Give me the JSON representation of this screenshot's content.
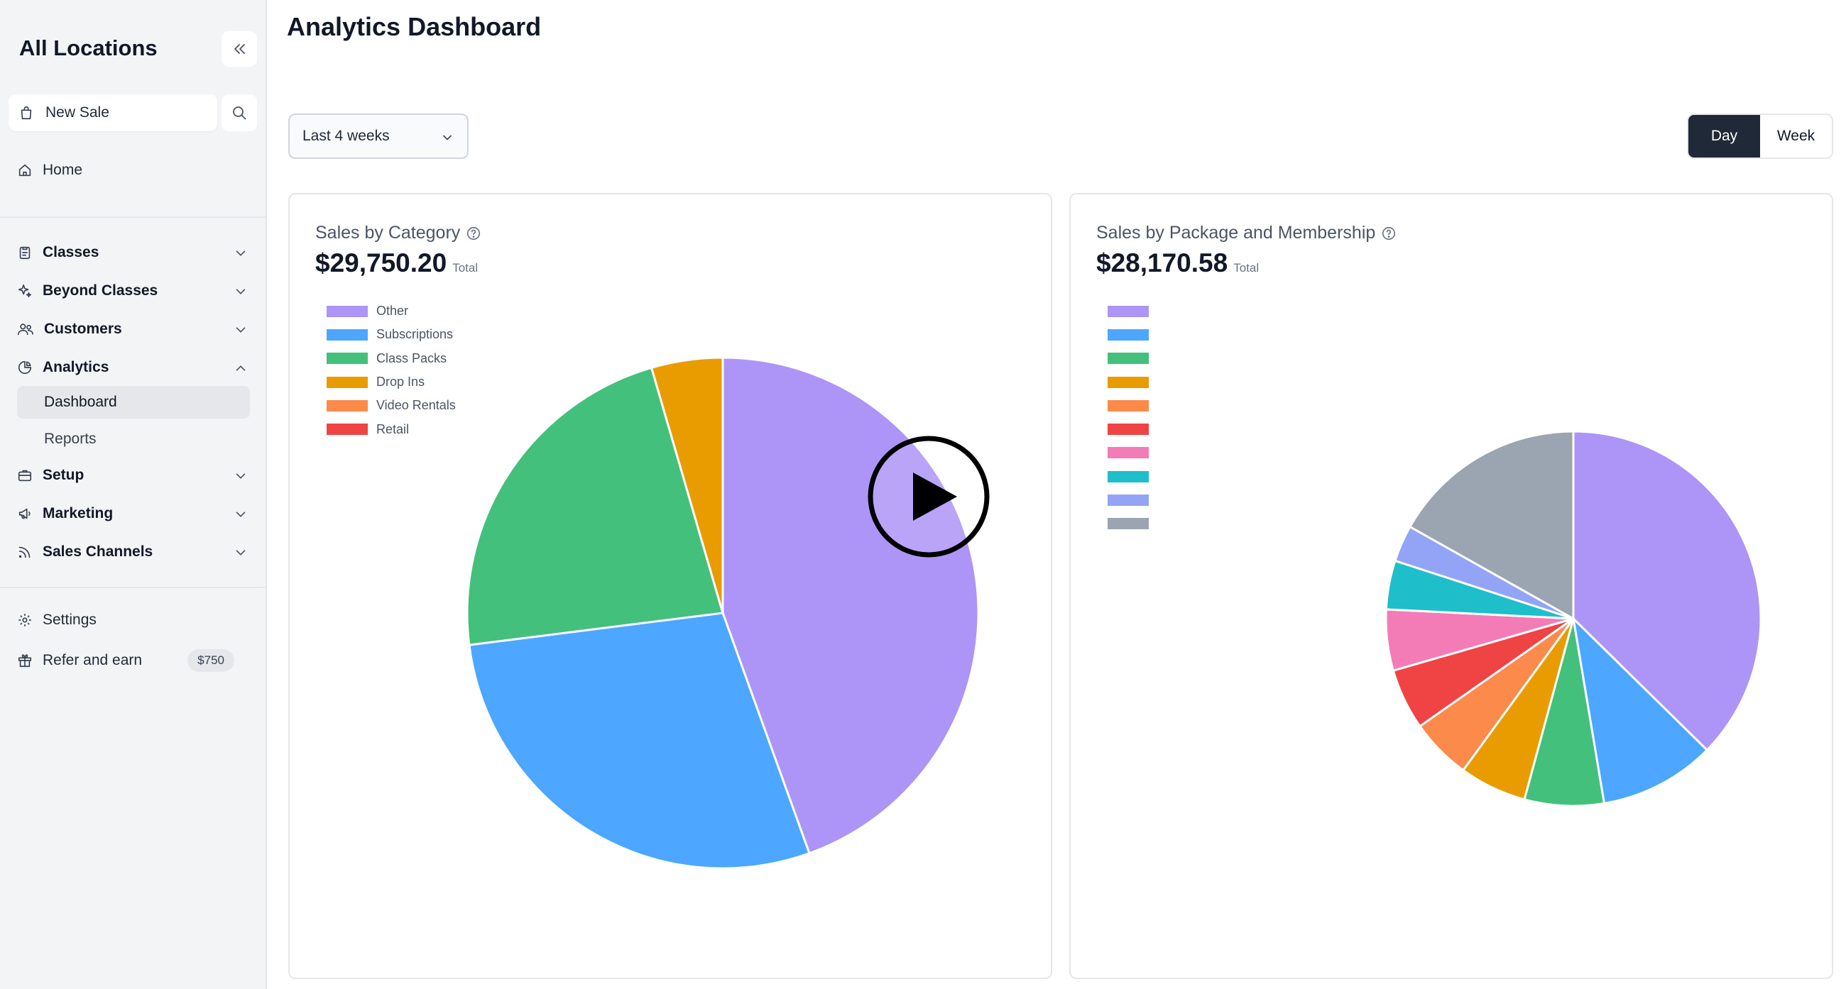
{
  "sidebar": {
    "location": "All Locations",
    "new_sale": "New Sale",
    "nav": {
      "home": "Home",
      "classes": "Classes",
      "beyond_classes": "Beyond Classes",
      "customers": "Customers",
      "analytics": "Analytics",
      "dashboard": "Dashboard",
      "reports": "Reports",
      "setup": "Setup",
      "marketing": "Marketing",
      "sales_channels": "Sales Channels",
      "settings": "Settings",
      "refer": "Refer and earn",
      "refer_badge": "$750"
    }
  },
  "header": {
    "title": "Analytics Dashboard"
  },
  "filters": {
    "range": "Last 4 weeks",
    "day": "Day",
    "week": "Week",
    "selected": "Day"
  },
  "chart_data": [
    {
      "type": "pie",
      "title": "Sales by Category",
      "total": "$29,750.20",
      "total_suffix": "Total",
      "categories": [
        "Other",
        "Subscriptions",
        "Class Packs",
        "Drop Ins",
        "Video Rentals",
        "Retail"
      ],
      "values": [
        44.5,
        28.5,
        22.5,
        4.5,
        0,
        0
      ],
      "colors": [
        "#ad94f7",
        "#4da6ff",
        "#43c07c",
        "#e99c00",
        "#fb8a4b",
        "#f04444"
      ],
      "legend": "top-left"
    },
    {
      "type": "pie",
      "title": "Sales by Package and Membership",
      "total": "$28,170.58",
      "total_suffix": "Total",
      "categories": [
        "",
        "",
        "",
        "",
        "",
        "",
        "",
        "",
        "",
        ""
      ],
      "values": [
        35.5,
        9.5,
        6.5,
        5.5,
        5.0,
        5.0,
        5.0,
        4.0,
        3.0,
        16.0
      ],
      "colors": [
        "#ad94f7",
        "#4da6ff",
        "#43c07c",
        "#e99c00",
        "#fb8a4b",
        "#f04444",
        "#f37cb6",
        "#1fbecb",
        "#93a4f6",
        "#9aa5b1"
      ],
      "legend": "top-left"
    }
  ]
}
